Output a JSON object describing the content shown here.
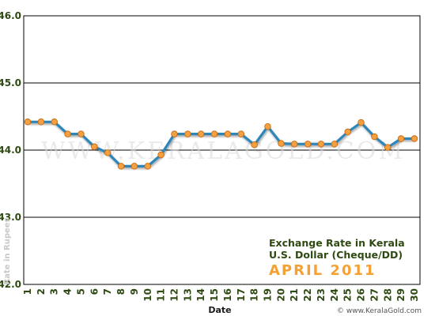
{
  "chart_data": {
    "type": "line",
    "title": "Exchange Rate in Kerala",
    "subtitle": "U.S. Dollar (Cheque/DD)",
    "period": "APRIL 2011",
    "xlabel": "Date",
    "ylabel": "Rate in Rupees",
    "watermark": "WWW.KERALAGOLD.COM",
    "credit": "© www.KeralaGold.com",
    "categories": [
      "1",
      "2",
      "3",
      "4",
      "5",
      "6",
      "7",
      "8",
      "9",
      "10",
      "11",
      "12",
      "13",
      "14",
      "15",
      "16",
      "17",
      "18",
      "19",
      "20",
      "21",
      "22",
      "23",
      "24",
      "25",
      "26",
      "27",
      "28",
      "29",
      "30"
    ],
    "values": [
      44.42,
      44.42,
      44.42,
      44.24,
      44.24,
      44.05,
      43.96,
      43.76,
      43.76,
      43.76,
      43.93,
      44.24,
      44.24,
      44.24,
      44.24,
      44.24,
      44.24,
      44.08,
      44.35,
      44.1,
      44.09,
      44.09,
      44.09,
      44.09,
      44.27,
      44.41,
      44.2,
      44.04,
      44.17,
      44.17
    ],
    "ylim": [
      42.0,
      46.0
    ],
    "yticks": [
      "42.0",
      "43.0",
      "44.0",
      "45.0",
      "46.0"
    ],
    "grid": true,
    "colors": {
      "line": "#2e86b8",
      "marker": "#f5a040",
      "marker_edge": "#c46a12",
      "axis_text": "#2e4a12",
      "accent": "#f5a030"
    }
  }
}
